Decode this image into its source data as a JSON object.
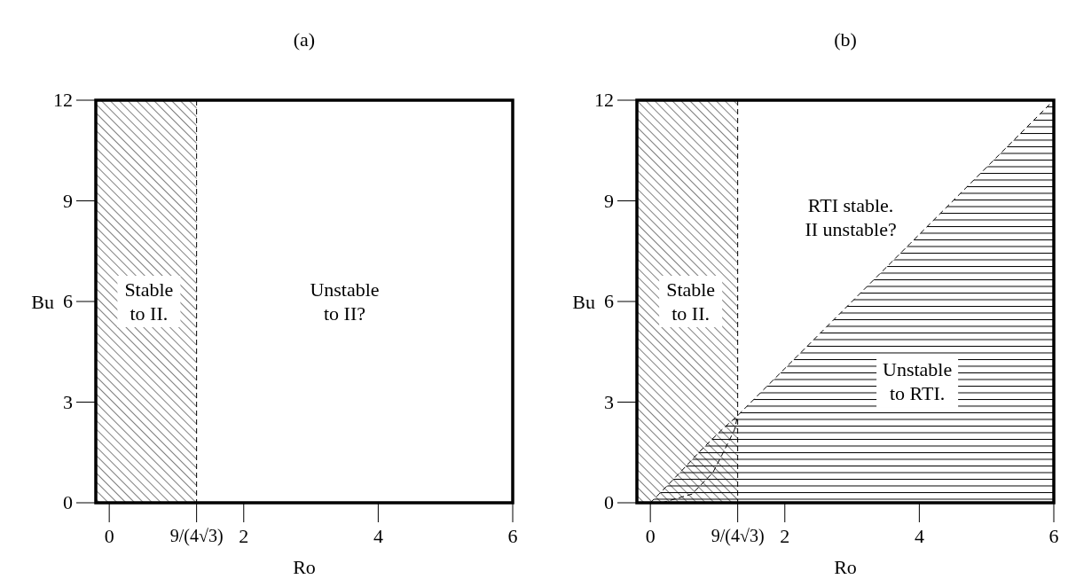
{
  "chart_data": [
    {
      "type": "area",
      "title": "(a)",
      "xlabel": "Ro",
      "ylabel": "Bu",
      "xlim": [
        -0.2,
        6
      ],
      "ylim": [
        0,
        12
      ],
      "xticks": [
        0,
        {
          "value": 1.299,
          "label": "9/(4√3)"
        },
        2,
        4,
        6
      ],
      "yticks": [
        0,
        3,
        6,
        9,
        12
      ],
      "line_style": "dashed",
      "bands": [
        {
          "axis": "x",
          "from": -0.2,
          "to": 1.299,
          "color": "#000000"
        }
      ],
      "annotations": [
        "Stable\nto II.",
        "Unstable\nto II?"
      ]
    },
    {
      "type": "area",
      "title": "(b)",
      "xlabel": "Ro",
      "ylabel": "Bu",
      "xlim": [
        -0.2,
        6
      ],
      "ylim": [
        0,
        12
      ],
      "xticks": [
        0,
        {
          "value": 1.299,
          "label": "9/(4√3)"
        },
        2,
        4,
        6
      ],
      "yticks": [
        0,
        3,
        6,
        9,
        12
      ],
      "line_style": "dashed",
      "series": [
        {
          "color": "#000000",
          "x": [
            0,
            0.13,
            0.44,
            0.75,
            1.06,
            1.299,
            6
          ],
          "values": [
            0,
            0.26,
            0.9,
            1.56,
            2.17,
            2.6,
            12
          ]
        },
        {
          "type": "line",
          "color": "#000000",
          "x": [
            0.17,
            0.62,
            0.93,
            1.1,
            1.25,
            1.299
          ],
          "values": [
            0,
            0.26,
            0.9,
            1.56,
            2.17,
            2.6
          ]
        }
      ],
      "bands": [
        {
          "axis": "x",
          "from": -0.2,
          "to": 1.299,
          "color": "#000000"
        }
      ],
      "annotations": [
        "Stable\nto II.",
        "RTI stable.\nII unstable?",
        "Unstable\nto RTI."
      ]
    }
  ]
}
